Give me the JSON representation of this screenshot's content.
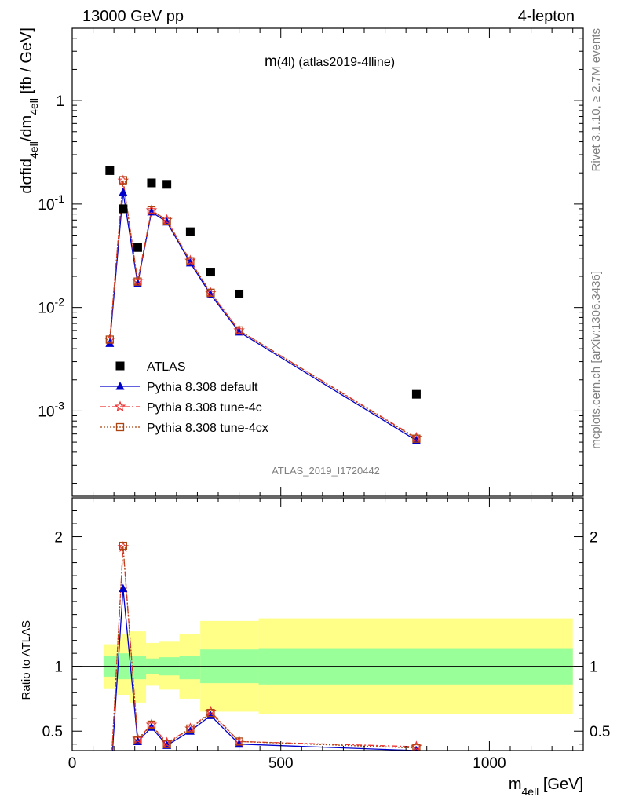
{
  "header": {
    "left": "13000 GeV pp",
    "right": "4-lepton"
  },
  "side_labels": {
    "rivet": "Rivet 3.1.10, ≥ 2.7M events",
    "mcplots": "mcplots.cern.ch [arXiv:1306.3436]"
  },
  "colors": {
    "data": "#000000",
    "default": "#0000cc",
    "tune4c": "#ee3333",
    "tune4cx": "#aa4411",
    "band_inner": "#99ff99",
    "band_outer": "#ffff88"
  },
  "chart_data": [
    {
      "type": "scatter",
      "title": "m(4l) (atlas2019-4lline)",
      "watermark": "ATLAS_2019_I1720442",
      "xlabel": "m_4ell [GeV]",
      "ylabel": "dσfid_4ell/dm_4ell [fb / GeV]",
      "yscale": "log",
      "xlim": [
        0,
        1225
      ],
      "ylim": [
        0.00015,
        5
      ],
      "ytick_labels": [
        "1",
        "10^-1",
        "10^-2",
        "10^-3"
      ],
      "x": [
        90,
        122,
        157,
        190,
        227,
        283,
        332,
        400,
        825
      ],
      "legend": {
        "placement": "lower-left",
        "entries": [
          "ATLAS",
          "Pythia 8.308 default",
          "Pythia 8.308 tune-4c",
          "Pythia 8.308 tune-4cx"
        ]
      },
      "series": [
        {
          "name": "ATLAS",
          "marker": "square",
          "values": [
            0.21,
            0.09,
            0.038,
            0.16,
            0.155,
            0.054,
            0.022,
            0.0135,
            0.00145
          ]
        },
        {
          "name": "Pythia 8.308 default",
          "marker": "triangle",
          "values": [
            0.0045,
            0.13,
            0.017,
            0.084,
            0.067,
            0.027,
            0.0133,
            0.0058,
            0.00052
          ]
        },
        {
          "name": "Pythia 8.308 tune-4c",
          "marker": "star",
          "values": [
            0.0049,
            0.168,
            0.018,
            0.087,
            0.07,
            0.0283,
            0.0138,
            0.006,
            0.00055
          ]
        },
        {
          "name": "Pythia 8.308 tune-4cx",
          "marker": "open-square",
          "values": [
            0.0049,
            0.17,
            0.0178,
            0.087,
            0.069,
            0.028,
            0.0139,
            0.006,
            0.00054
          ]
        }
      ]
    },
    {
      "type": "line",
      "ylabel": "Ratio to ATLAS",
      "xlabel": "m_4ell [GeV]",
      "xlim": [
        0,
        1225
      ],
      "ylim": [
        0.35,
        2.3
      ],
      "xtick_labels": [
        "0",
        "500",
        "1000"
      ],
      "ytick_labels": [
        "0.5",
        "1",
        "2"
      ],
      "bins": [
        {
          "lo": 75,
          "hi": 107,
          "inner": [
            0.92,
            1.08
          ],
          "outer": [
            0.83,
            1.17
          ]
        },
        {
          "lo": 107,
          "hi": 137,
          "inner": [
            0.9,
            1.1
          ],
          "outer": [
            0.78,
            1.25
          ]
        },
        {
          "lo": 137,
          "hi": 177,
          "inner": [
            0.9,
            1.08
          ],
          "outer": [
            0.72,
            1.27
          ]
        },
        {
          "lo": 177,
          "hi": 207,
          "inner": [
            0.94,
            1.06
          ],
          "outer": [
            0.85,
            1.18
          ]
        },
        {
          "lo": 207,
          "hi": 257,
          "inner": [
            0.93,
            1.07
          ],
          "outer": [
            0.82,
            1.19
          ]
        },
        {
          "lo": 257,
          "hi": 307,
          "inner": [
            0.9,
            1.08
          ],
          "outer": [
            0.75,
            1.25
          ]
        },
        {
          "lo": 307,
          "hi": 357,
          "inner": [
            0.87,
            1.13
          ],
          "outer": [
            0.65,
            1.35
          ]
        },
        {
          "lo": 357,
          "hi": 447,
          "inner": [
            0.87,
            1.13
          ],
          "outer": [
            0.65,
            1.35
          ]
        },
        {
          "lo": 447,
          "hi": 1200,
          "inner": [
            0.86,
            1.14
          ],
          "outer": [
            0.63,
            1.37
          ]
        }
      ],
      "series": [
        {
          "name": "Pythia 8.308 default",
          "values": [
            0.021,
            1.6,
            0.42,
            0.53,
            0.39,
            0.5,
            0.62,
            0.4,
            0.35
          ]
        },
        {
          "name": "Pythia 8.308 tune-4c",
          "values": [
            0.023,
            1.92,
            0.44,
            0.55,
            0.41,
            0.52,
            0.65,
            0.42,
            0.38
          ]
        },
        {
          "name": "Pythia 8.308 tune-4cx",
          "values": [
            0.023,
            1.93,
            0.43,
            0.55,
            0.4,
            0.52,
            0.64,
            0.42,
            0.37
          ]
        }
      ]
    }
  ]
}
